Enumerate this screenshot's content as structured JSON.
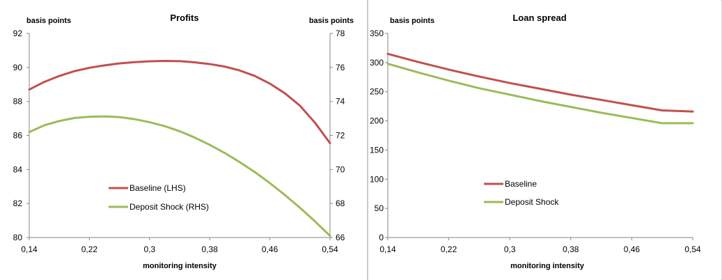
{
  "chart_data": [
    {
      "type": "line",
      "title": "Profits",
      "xlabel": "monitoring intensity",
      "ylabel_left": "basis points",
      "ylabel_right": "basis points",
      "x_ticks": [
        "0,14",
        "0,22",
        "0,3",
        "0,38",
        "0,46",
        "0,54"
      ],
      "xlim": [
        0.14,
        0.54
      ],
      "ylim_left": [
        80,
        92
      ],
      "y_ticks_left": [
        "80",
        "82",
        "84",
        "86",
        "88",
        "90",
        "92"
      ],
      "ylim_right": [
        66,
        78
      ],
      "y_ticks_right": [
        "66",
        "68",
        "70",
        "72",
        "74",
        "76",
        "78"
      ],
      "grid": false,
      "legend_position": "bottom-center",
      "series": [
        {
          "name": "Baseline (LHS)",
          "axis": "left",
          "color": "#c0504d",
          "x": [
            0.14,
            0.16,
            0.18,
            0.2,
            0.22,
            0.24,
            0.26,
            0.28,
            0.3,
            0.32,
            0.34,
            0.36,
            0.38,
            0.4,
            0.42,
            0.44,
            0.46,
            0.48,
            0.5,
            0.52,
            0.54
          ],
          "y": [
            88.7,
            89.15,
            89.5,
            89.78,
            89.98,
            90.12,
            90.24,
            90.31,
            90.36,
            90.38,
            90.37,
            90.3,
            90.2,
            90.05,
            89.82,
            89.5,
            89.05,
            88.48,
            87.75,
            86.75,
            85.55
          ]
        },
        {
          "name": "Deposit Shock (RHS)",
          "axis": "right",
          "color": "#9bbb59",
          "x": [
            0.14,
            0.16,
            0.18,
            0.2,
            0.22,
            0.24,
            0.26,
            0.28,
            0.3,
            0.32,
            0.34,
            0.36,
            0.38,
            0.4,
            0.42,
            0.44,
            0.46,
            0.48,
            0.5,
            0.52,
            0.54
          ],
          "y": [
            72.2,
            72.6,
            72.85,
            73.03,
            73.1,
            73.12,
            73.08,
            72.96,
            72.78,
            72.55,
            72.25,
            71.88,
            71.45,
            70.97,
            70.43,
            69.85,
            69.2,
            68.5,
            67.75,
            66.95,
            66.1
          ]
        }
      ]
    },
    {
      "type": "line",
      "title": "Loan spread",
      "xlabel": "monitoring intensity",
      "ylabel": "basis points",
      "x_ticks": [
        "0,14",
        "0,22",
        "0,3",
        "0,38",
        "0,46",
        "0,54"
      ],
      "xlim": [
        0.14,
        0.54
      ],
      "ylim": [
        0,
        350
      ],
      "y_ticks": [
        "0",
        "50",
        "100",
        "150",
        "200",
        "250",
        "300",
        "350"
      ],
      "grid": false,
      "legend_position": "bottom-center",
      "series": [
        {
          "name": "Baseline",
          "color": "#c0504d",
          "x": [
            0.14,
            0.18,
            0.22,
            0.26,
            0.3,
            0.34,
            0.38,
            0.42,
            0.46,
            0.5,
            0.54
          ],
          "y": [
            315,
            301,
            288,
            276,
            265,
            255,
            245,
            236,
            227,
            218,
            216
          ]
        },
        {
          "name": "Deposit Shock",
          "color": "#9bbb59",
          "x": [
            0.14,
            0.18,
            0.22,
            0.26,
            0.3,
            0.34,
            0.38,
            0.42,
            0.46,
            0.5,
            0.54
          ],
          "y": [
            298,
            283,
            269,
            256,
            245,
            234,
            224,
            214,
            205,
            196,
            196
          ]
        }
      ]
    }
  ]
}
